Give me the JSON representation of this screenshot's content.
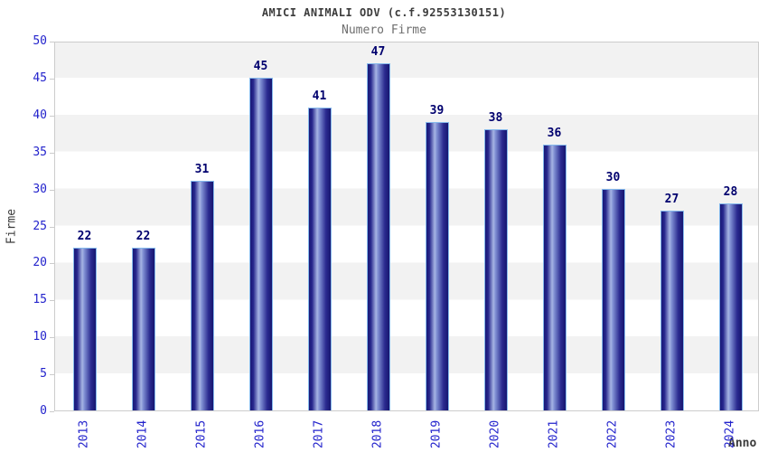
{
  "header": {
    "title": "AMICI ANIMALI ODV (c.f.92553130151)",
    "subtitle": "Numero Firme"
  },
  "chart_data": {
    "type": "bar",
    "title": "AMICI ANIMALI ODV (c.f.92553130151)",
    "subtitle": "Numero Firme",
    "categories": [
      "2013",
      "2014",
      "2015",
      "2016",
      "2017",
      "2018",
      "2019",
      "2020",
      "2021",
      "2022",
      "2023",
      "2024"
    ],
    "values": [
      22,
      22,
      31,
      45,
      41,
      47,
      39,
      38,
      36,
      30,
      27,
      28
    ],
    "xlabel": "Anno",
    "ylabel": "Firme",
    "ylim": [
      0,
      50
    ],
    "yticks": [
      0,
      5,
      10,
      15,
      20,
      25,
      30,
      35,
      40,
      45,
      50
    ],
    "grid": "alternating-horizontal-bands",
    "legend": "none",
    "colors": {
      "bar_dark": "#191977",
      "bar_highlight": "#a6b4e4",
      "bar_border": "#85b9ec",
      "tick_label": "#2323cc",
      "value_label": "#00006e",
      "band_gray": "#f2f2f2",
      "plot_border": "#cccccc",
      "title_text": "#3c3c3c",
      "subtitle_text": "#6e6e6e"
    }
  }
}
